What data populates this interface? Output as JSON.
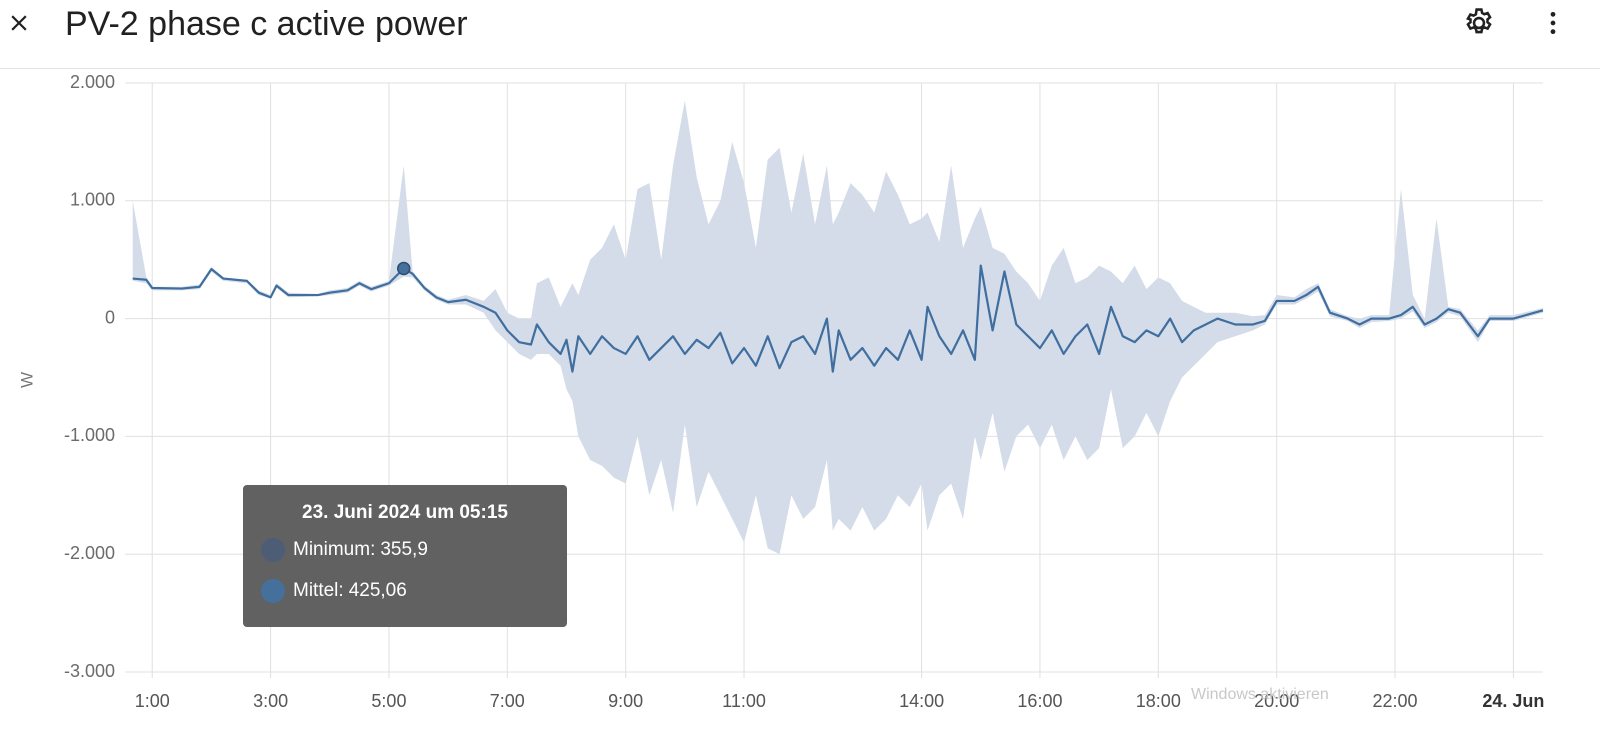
{
  "header": {
    "title": "PV-2 phase c active power"
  },
  "watermark": "Windows aktivieren",
  "chart_data": {
    "type": "line",
    "y_label": "W",
    "xlim": [
      0.54,
      24.5
    ],
    "xticks": [
      {
        "value": 1,
        "label": "1:00"
      },
      {
        "value": 3,
        "label": "3:00"
      },
      {
        "value": 5,
        "label": "5:00"
      },
      {
        "value": 7,
        "label": "7:00"
      },
      {
        "value": 9,
        "label": "9:00"
      },
      {
        "value": 11,
        "label": "11:00"
      },
      {
        "value": 14,
        "label": "14:00"
      },
      {
        "value": 16,
        "label": "16:00"
      },
      {
        "value": 18,
        "label": "18:00"
      },
      {
        "value": 20,
        "label": "20:00"
      },
      {
        "value": 22,
        "label": "22:00"
      },
      {
        "value": 24,
        "label": "24. Jun"
      }
    ],
    "bold_xtick": 11,
    "ylim": [
      -3000,
      2000
    ],
    "yticks": [
      {
        "value": 2000,
        "label": "2.000"
      },
      {
        "value": 1000,
        "label": "1.000"
      },
      0,
      {
        "value": -1000,
        "label": "-1.000"
      },
      {
        "value": -2000,
        "label": "-2.000"
      },
      {
        "value": -3000,
        "label": "-3.000"
      }
    ],
    "grid": true,
    "x": [
      0.67,
      0.9,
      1.0,
      1.5,
      1.8,
      2.0,
      2.2,
      2.6,
      2.8,
      3.0,
      3.1,
      3.3,
      3.8,
      4.0,
      4.3,
      4.5,
      4.7,
      5.0,
      5.25,
      5.4,
      5.6,
      5.8,
      6.0,
      6.3,
      6.6,
      6.8,
      7.0,
      7.2,
      7.4,
      7.5,
      7.7,
      7.9,
      8.0,
      8.1,
      8.2,
      8.4,
      8.6,
      8.8,
      9.0,
      9.2,
      9.4,
      9.6,
      9.8,
      10.0,
      10.2,
      10.4,
      10.6,
      10.8,
      11.0,
      11.2,
      11.4,
      11.6,
      11.8,
      12.0,
      12.2,
      12.4,
      12.5,
      12.6,
      12.8,
      13.0,
      13.2,
      13.4,
      13.6,
      13.8,
      14.0,
      14.1,
      14.3,
      14.5,
      14.7,
      14.9,
      15.0,
      15.2,
      15.4,
      15.6,
      15.8,
      16.0,
      16.2,
      16.4,
      16.6,
      16.8,
      17.0,
      17.2,
      17.4,
      17.6,
      17.8,
      18.0,
      18.2,
      18.4,
      18.6,
      18.8,
      19.0,
      19.3,
      19.6,
      19.8,
      20.0,
      20.3,
      20.5,
      20.7,
      20.9,
      21.2,
      21.4,
      21.6,
      21.9,
      22.1,
      22.3,
      22.5,
      22.7,
      22.9,
      23.1,
      23.4,
      23.6,
      24.0,
      24.5
    ],
    "series": [
      {
        "name": "Mittel",
        "color": "#3f6e9f",
        "band_color": "#d3dce8",
        "values": [
          340,
          330,
          260,
          255,
          270,
          420,
          340,
          320,
          220,
          180,
          280,
          200,
          200,
          220,
          240,
          300,
          250,
          300,
          425.06,
          380,
          260,
          180,
          140,
          160,
          100,
          50,
          -100,
          -200,
          -220,
          -50,
          -200,
          -300,
          -180,
          -450,
          -150,
          -300,
          -150,
          -250,
          -300,
          -150,
          -350,
          -250,
          -150,
          -300,
          -180,
          -250,
          -120,
          -380,
          -250,
          -400,
          -150,
          -420,
          -200,
          -150,
          -300,
          0,
          -450,
          -100,
          -350,
          -250,
          -400,
          -250,
          -350,
          -100,
          -350,
          100,
          -150,
          -300,
          -100,
          -350,
          450,
          -100,
          400,
          -50,
          -150,
          -250,
          -100,
          -300,
          -150,
          -50,
          -300,
          100,
          -150,
          -200,
          -100,
          -150,
          0,
          -200,
          -100,
          -50,
          0,
          -50,
          -50,
          -20,
          150,
          150,
          200,
          270,
          50,
          0,
          -50,
          0,
          0,
          30,
          100,
          -50,
          0,
          80,
          50,
          -150,
          0,
          0,
          70
        ],
        "band_max": [
          1000,
          350,
          270,
          270,
          290,
          440,
          350,
          330,
          240,
          200,
          300,
          220,
          210,
          240,
          260,
          320,
          270,
          320,
          1300,
          400,
          280,
          200,
          160,
          200,
          150,
          250,
          50,
          0,
          0,
          300,
          350,
          100,
          200,
          300,
          200,
          500,
          600,
          800,
          500,
          1100,
          1150,
          500,
          1300,
          1850,
          1200,
          800,
          1000,
          1500,
          1150,
          600,
          1350,
          1450,
          900,
          1400,
          800,
          1300,
          800,
          900,
          1150,
          1050,
          900,
          1250,
          1050,
          800,
          850,
          900,
          650,
          1300,
          600,
          850,
          950,
          600,
          550,
          400,
          300,
          150,
          450,
          600,
          300,
          350,
          450,
          400,
          300,
          450,
          250,
          350,
          300,
          150,
          100,
          50,
          50,
          50,
          20,
          30,
          200,
          180,
          250,
          300,
          80,
          20,
          0,
          30,
          30,
          1100,
          200,
          0,
          850,
          100,
          80,
          -100,
          30,
          30,
          90
        ],
        "band_min": [
          320,
          300,
          240,
          240,
          250,
          400,
          320,
          300,
          200,
          170,
          260,
          180,
          190,
          200,
          220,
          280,
          230,
          280,
          355.9,
          350,
          240,
          160,
          120,
          120,
          50,
          -100,
          -200,
          -300,
          -350,
          -300,
          -300,
          -400,
          -600,
          -700,
          -1000,
          -1200,
          -1250,
          -1350,
          -1400,
          -1000,
          -1500,
          -1200,
          -1650,
          -900,
          -1600,
          -1300,
          -1500,
          -1700,
          -1900,
          -1500,
          -1950,
          -2000,
          -1500,
          -1700,
          -1600,
          -1200,
          -1800,
          -1700,
          -1800,
          -1600,
          -1800,
          -1700,
          -1500,
          -1600,
          -1400,
          -1800,
          -1500,
          -1400,
          -1700,
          -1000,
          -1200,
          -800,
          -1300,
          -1000,
          -900,
          -1100,
          -900,
          -1200,
          -1000,
          -1200,
          -1100,
          -600,
          -1100,
          -1000,
          -800,
          -1000,
          -700,
          -500,
          -400,
          -300,
          -200,
          -150,
          -100,
          -50,
          120,
          120,
          170,
          230,
          20,
          -20,
          -80,
          -30,
          -20,
          0,
          60,
          -80,
          -30,
          50,
          20,
          -200,
          -20,
          -20,
          50
        ]
      }
    ],
    "tooltip": {
      "title": "23. Juni 2024 um 05:15",
      "x": 5.25,
      "items": [
        {
          "name": "Minimum",
          "value": 355.9,
          "label": "355,9",
          "color": "#4c5d75"
        },
        {
          "name": "Mittel",
          "value": 425.06,
          "label": "425,06",
          "color": "#46709c"
        }
      ]
    }
  }
}
